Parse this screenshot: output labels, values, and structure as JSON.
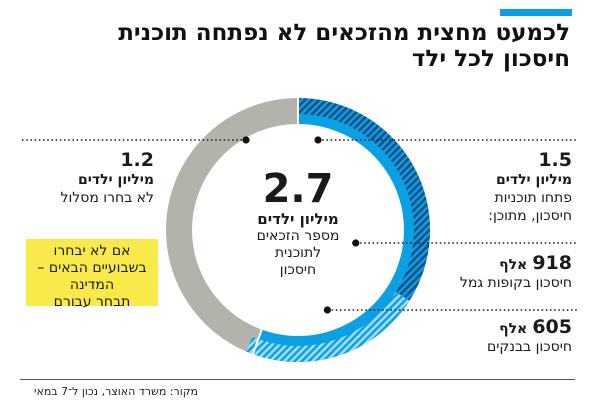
{
  "header": {
    "title_lines": [
      "לכמעט מחצית מהזכאים לא נפתחה תוכנית",
      "חיסכון לכל ילד"
    ]
  },
  "center": {
    "value": "2.7",
    "unit": "מיליון ילדים",
    "desc_lines": [
      "מספר הזכאים",
      "לתוכנית",
      "חיסכון"
    ]
  },
  "left_label": {
    "value": "1.2",
    "unit": "מיליון ילדים",
    "desc": "לא בחרו מסלול"
  },
  "callout": {
    "lines": [
      "אם לא יבחרו",
      "בשבועיים הבאים –",
      "המדינה",
      "תבחר עבורם"
    ]
  },
  "right_labels": {
    "opened": {
      "value": "1.5",
      "unit": "מיליון ילדים",
      "desc_lines": [
        "פתחו תוכניות",
        "חיסכון, מתוכן:"
      ]
    },
    "gemel": {
      "value": "918",
      "unit": "אלף",
      "desc": "חיסכון בקופות גמל"
    },
    "banks": {
      "value": "605",
      "unit": "אלף",
      "desc": "חיסכון בבנקים"
    }
  },
  "source": "מקור: משרד האוצר, נכון ל־7 במאי",
  "chart_data": {
    "type": "pie",
    "variant": "donut",
    "total": 2.7,
    "unit": "מיליון ילדים",
    "slices": [
      {
        "label": "פתחו תוכניות חיסכון",
        "value": 1.5,
        "color": "#0aa0e3"
      },
      {
        "label": "לא בחרו מסלול",
        "value": 1.2,
        "color": "#b4b3ab"
      }
    ],
    "inner_breakdown": [
      {
        "label": "חיסכון בקופות גמל",
        "value": 0.918,
        "pattern": "dark-stripes"
      },
      {
        "label": "חיסכון בבנקים",
        "value": 0.605,
        "pattern": "light-stripes"
      }
    ]
  }
}
